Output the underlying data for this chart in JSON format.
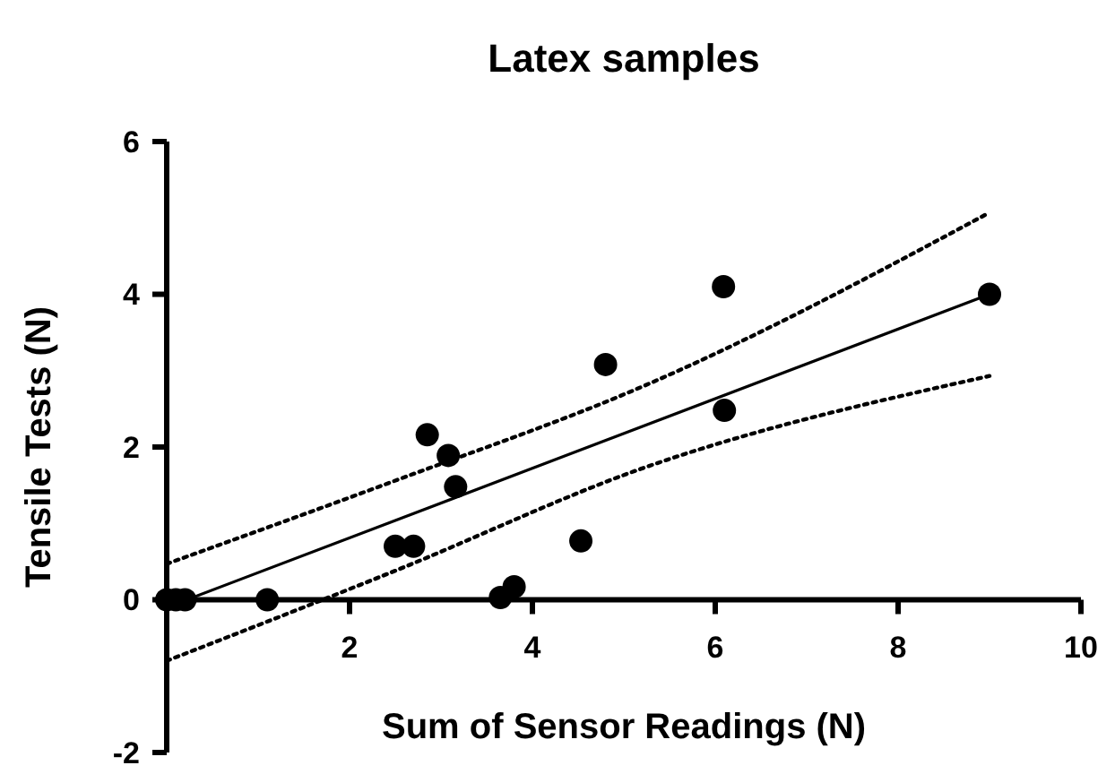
{
  "chart_data": {
    "type": "scatter",
    "title": "Latex samples",
    "xlabel": "Sum of Sensor Readings (N)",
    "ylabel": "Tensile Tests (N)",
    "xlim": [
      0,
      10
    ],
    "xticks": [
      2,
      4,
      6,
      8,
      10
    ],
    "ylim": [
      -2,
      6
    ],
    "yticks": [
      -2,
      0,
      2,
      4,
      6
    ],
    "grid": false,
    "series": [
      {
        "color": "#000000",
        "marker": "circle",
        "x": [
          0,
          0.1,
          0.2,
          1.1,
          2.5,
          2.7,
          2.85,
          3.08,
          3.16,
          3.65,
          3.8,
          4.53,
          4.8,
          6.09,
          6.1,
          9.0
        ],
        "values": [
          0,
          0,
          0,
          0,
          0.7,
          0.7,
          2.16,
          1.89,
          1.48,
          0.03,
          0.17,
          0.77,
          3.08,
          4.1,
          2.48,
          4.0
        ]
      },
      {
        "type": "line",
        "color": "#000000",
        "line_style": "solid",
        "x": [
          0,
          9
        ],
        "values": [
          -0.1,
          4.0
        ]
      },
      {
        "type": "line",
        "color": "#000000",
        "line_style": "dotted",
        "x": [
          0,
          2.5,
          5.2,
          9
        ],
        "values": [
          0.47,
          1.56,
          2.79,
          5.07
        ]
      },
      {
        "type": "line",
        "color": "#000000",
        "line_style": "dotted",
        "x": [
          0,
          2.5,
          5.2,
          9
        ],
        "values": [
          -0.8,
          0.38,
          1.72,
          2.93
        ]
      }
    ]
  }
}
